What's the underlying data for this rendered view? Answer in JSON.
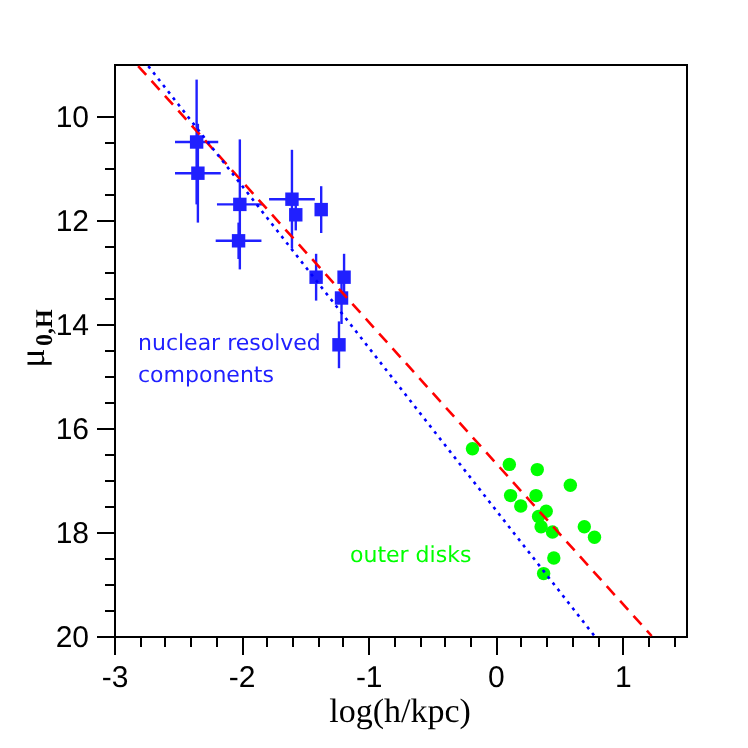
{
  "chart_data": {
    "type": "scatter",
    "xlabel": "log(h/kpc)",
    "ylabel": "μ$_{0,H}$",
    "xlim": [
      -3,
      1.5
    ],
    "ylim": [
      20,
      9
    ],
    "xticks": [
      -3,
      {
        "value": -2.8,
        "label": null
      },
      {
        "value": -2.6,
        "label": null
      },
      {
        "value": -2.4,
        "label": null
      },
      {
        "value": -2.2,
        "label": null
      },
      -2,
      {
        "value": -1.8,
        "label": null
      },
      {
        "value": -1.6,
        "label": null
      },
      {
        "value": -1.4,
        "label": null
      },
      {
        "value": -1.2,
        "label": null
      },
      -1,
      {
        "value": -0.8,
        "label": null
      },
      {
        "value": -0.6,
        "label": null
      },
      {
        "value": -0.4,
        "label": null
      },
      {
        "value": -0.2,
        "label": null
      },
      0,
      {
        "value": 0.2,
        "label": null
      },
      {
        "value": 0.4,
        "label": null
      },
      {
        "value": 0.6,
        "label": null
      },
      {
        "value": 0.8,
        "label": null
      },
      1,
      {
        "value": 1.2,
        "label": null
      },
      {
        "value": 1.4,
        "label": null
      }
    ],
    "yticks": [
      10,
      {
        "value": 10.5,
        "label": null
      },
      {
        "value": 11,
        "label": null
      },
      {
        "value": 11.5,
        "label": null
      },
      12,
      {
        "value": 12.5,
        "label": null
      },
      {
        "value": 13,
        "label": null
      },
      {
        "value": 13.5,
        "label": null
      },
      14,
      {
        "value": 14.5,
        "label": null
      },
      {
        "value": 15,
        "label": null
      },
      {
        "value": 15.5,
        "label": null
      },
      16,
      {
        "value": 16.5,
        "label": null
      },
      {
        "value": 17,
        "label": null
      },
      {
        "value": 17.5,
        "label": null
      },
      18,
      {
        "value": 18.5,
        "label": null
      },
      {
        "value": 19,
        "label": null
      },
      {
        "value": 19.5,
        "label": null
      },
      20
    ],
    "grid": false,
    "series": [
      {
        "name": "nuclear resolved\ncomponents",
        "marker": "square",
        "color": "#2020ff",
        "x": [
          -2.35,
          -2.34,
          -2.01,
          -2.02,
          -1.6,
          -1.57,
          -1.37,
          -1.41,
          -1.19,
          -1.21,
          -1.23
        ],
        "values": [
          10.5,
          11.1,
          11.7,
          12.4,
          11.6,
          11.9,
          11.8,
          13.1,
          13.1,
          13.5,
          14.4
        ],
        "xerrors": [
          0.17,
          0.18,
          0.18,
          0.18,
          0.18,
          null,
          null,
          null,
          null,
          null,
          null
        ],
        "errors": [
          1.2,
          0.95,
          1.25,
          0.35,
          0.95,
          0.3,
          0.45,
          0.45,
          0.45,
          0.5,
          0.45
        ]
      },
      {
        "name": "outer disks",
        "marker": "circle",
        "color": "#00ff00",
        "x": [
          -0.18,
          0.11,
          0.33,
          0.59,
          0.12,
          0.32,
          0.2,
          0.4,
          0.34,
          0.36,
          0.45,
          0.7,
          0.78,
          0.46,
          0.38
        ],
        "values": [
          16.4,
          16.7,
          16.8,
          17.1,
          17.3,
          17.3,
          17.5,
          17.6,
          17.7,
          17.9,
          18,
          17.9,
          18.1,
          18.5,
          18.8
        ]
      },
      {
        "type": "line",
        "line_style": "dashed",
        "color": "#ff0000",
        "x": [
          -2.81,
          1.23
        ],
        "values": [
          9.04,
          20
        ]
      },
      {
        "type": "line",
        "line_style": "dotted",
        "color": "#0000ff",
        "x": [
          -2.73,
          0.78
        ],
        "values": [
          9.04,
          20
        ]
      }
    ]
  }
}
